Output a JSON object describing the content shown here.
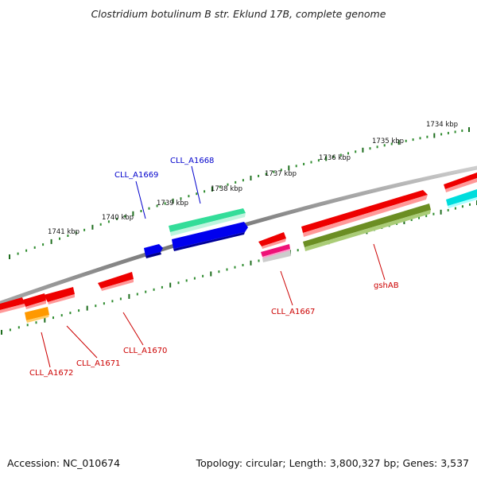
{
  "title": "Clostridium botulinum B str. Eklund 17B, complete genome",
  "footer": {
    "accession": "Accession: NC_010674",
    "stats": "Topology: circular; Length: 3,800,327 bp; Genes: 3,537"
  },
  "scale_labels": [
    "1741 kbp",
    "1740 kbp",
    "1739 kbp",
    "1738 kbp",
    "1737 kbp",
    "1736 kbp",
    "1735 kbp",
    "1734 kbp"
  ],
  "gene_labels": [
    {
      "name": "CLL_A1669",
      "color": "#0000cc"
    },
    {
      "name": "CLL_A1668",
      "color": "#0000cc"
    },
    {
      "name": "CLL_A1667",
      "color": "#cc0000"
    },
    {
      "name": "gshAB",
      "color": "#cc0000"
    },
    {
      "name": "CLL_A1670",
      "color": "#cc0000"
    },
    {
      "name": "CLL_A1671",
      "color": "#cc0000"
    },
    {
      "name": "CLL_A1672",
      "color": "#cc0000"
    }
  ],
  "colors": {
    "backbone": "#808080",
    "tick_major": "#1f6e1f",
    "tick_minor": "#2e8b2e",
    "cds_red": "#ee0000",
    "cds_blue": "#0000ee",
    "cds_teal": "#33dd99",
    "cds_olive": "#6b8e23",
    "cds_cyan": "#00dddd",
    "cds_orange": "#ff9900",
    "cds_magenta": "#ee1177",
    "cds_grey": "#bbbbbb"
  }
}
